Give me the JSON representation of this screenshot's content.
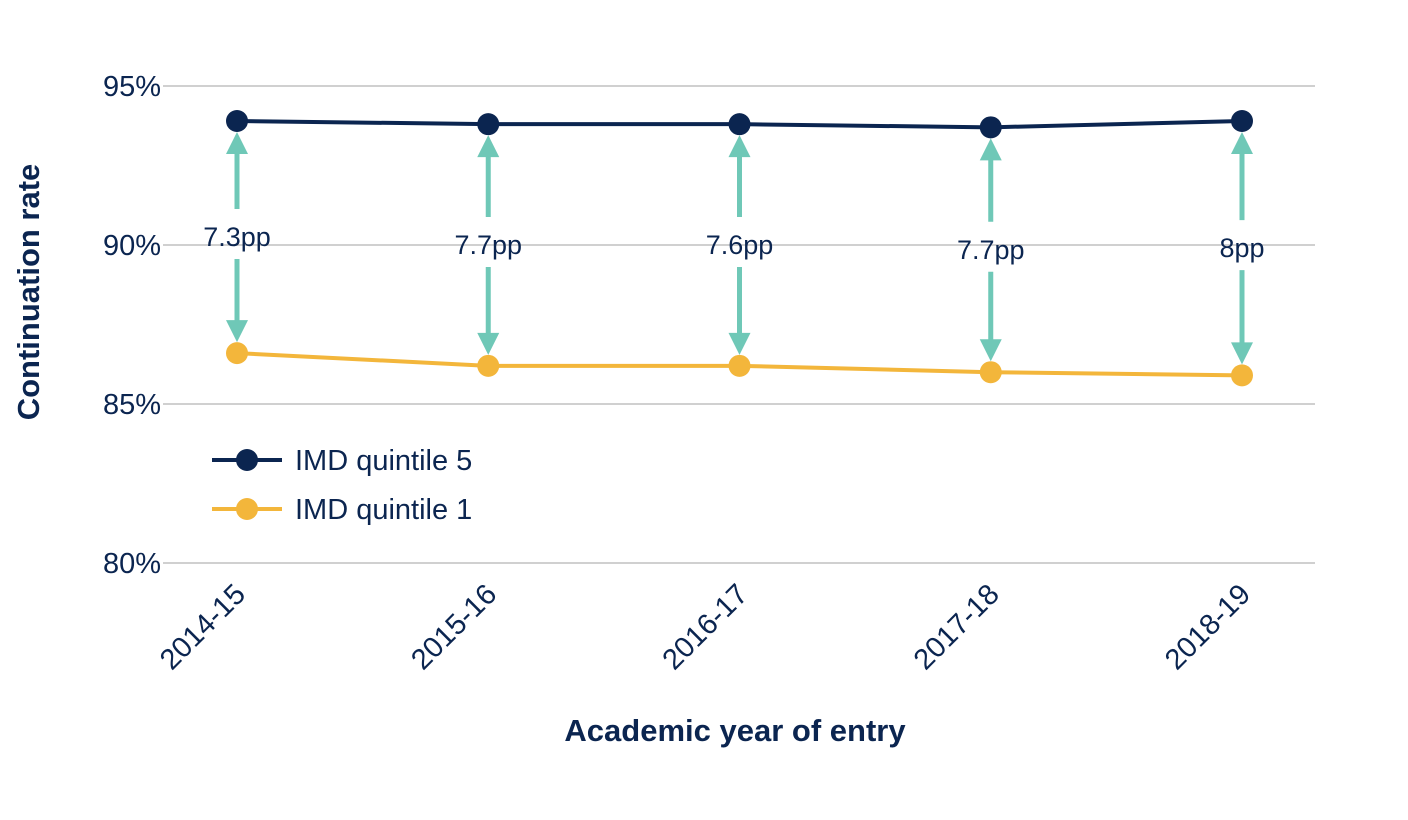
{
  "chart_data": {
    "type": "line",
    "title": "",
    "xlabel": "Academic year of entry",
    "ylabel": "Continuation rate",
    "categories": [
      "2014-15",
      "2015-16",
      "2016-17",
      "2017-18",
      "2018-19"
    ],
    "y_ticks": [
      80,
      85,
      90,
      95
    ],
    "y_tick_labels": [
      "80%",
      "85%",
      "90%",
      "95%"
    ],
    "ylim": [
      80,
      95
    ],
    "grid": "horizontal",
    "legend_position": "bottom-left",
    "series": [
      {
        "name": "IMD quintile 5",
        "color": "#0b2550",
        "values": [
          93.9,
          93.8,
          93.8,
          93.7,
          93.9
        ]
      },
      {
        "name": "IMD quintile 1",
        "color": "#f3b63b",
        "values": [
          86.6,
          86.2,
          86.2,
          86.0,
          85.9
        ]
      }
    ],
    "gap_labels": [
      "7.3pp",
      "7.7pp",
      "7.6pp",
      "7.7pp",
      "8pp"
    ],
    "gap_arrow_color": "#6fc8b7",
    "gridline_color": "#d0d0d0"
  }
}
